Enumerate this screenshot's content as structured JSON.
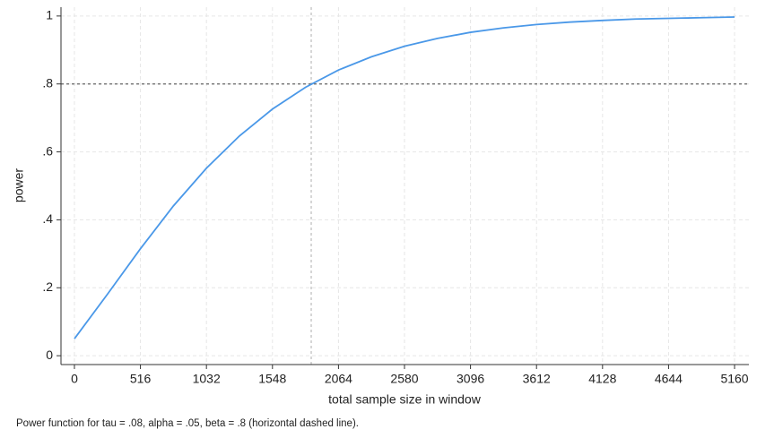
{
  "chart_data": {
    "type": "line",
    "x_label": "total sample size in window",
    "y_label": "power",
    "note": "Power function for tau = .08, alpha = .05, beta = .8 (horizontal dashed line).",
    "x": [
      0,
      258,
      516,
      774,
      1032,
      1290,
      1548,
      1806,
      2064,
      2322,
      2580,
      2838,
      3096,
      3354,
      3612,
      3870,
      4128,
      4386,
      4644,
      4902,
      5160
    ],
    "values": [
      0.05,
      0.181,
      0.315,
      0.441,
      0.552,
      0.647,
      0.726,
      0.79,
      0.841,
      0.88,
      0.911,
      0.934,
      0.952,
      0.965,
      0.975,
      0.982,
      0.987,
      0.991,
      0.993,
      0.995,
      0.997
    ],
    "color": "#4a98e8",
    "xlim": [
      -105,
      5272
    ],
    "ylim": [
      -0.026,
      1.026
    ],
    "xticks": [
      0,
      516,
      1032,
      1548,
      2064,
      2580,
      3096,
      3612,
      4128,
      4644,
      5160
    ],
    "yticks": [
      0,
      {
        "value": 0.2,
        "label": ".2"
      },
      {
        "value": 0.4,
        "label": ".4"
      },
      {
        "value": 0.6,
        "label": ".6"
      },
      {
        "value": 0.8,
        "label": ".8"
      },
      1
    ],
    "yline": 0.8,
    "xline": 1851,
    "grid": true
  }
}
